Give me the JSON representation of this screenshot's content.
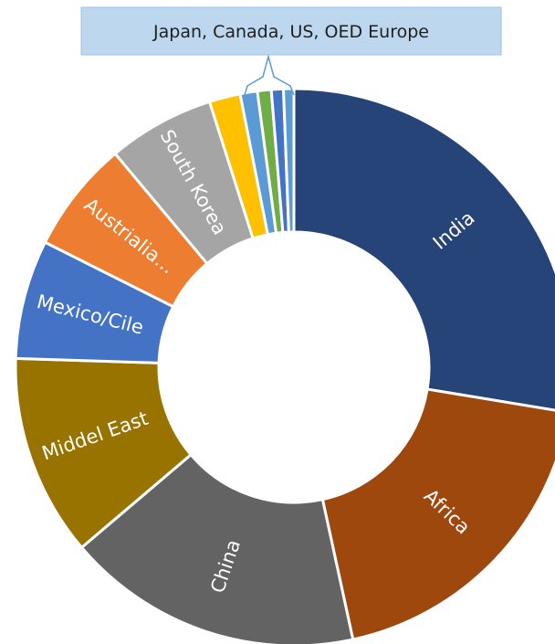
{
  "chart_data": {
    "type": "pie",
    "variant": "donut",
    "title": "",
    "slices": [
      {
        "label": "India",
        "value": 27.6,
        "color": "#264478"
      },
      {
        "label": "Africa",
        "value": 19.0,
        "color": "#9e480e"
      },
      {
        "label": "China",
        "value": 17.2,
        "color": "#636363"
      },
      {
        "label": "Middel East",
        "value": 11.7,
        "color": "#997300"
      },
      {
        "label": "Mexico/Cile",
        "value": 6.9,
        "color": "#4472c4"
      },
      {
        "label": "Austrialia...",
        "value": 6.5,
        "color": "#ed7d31"
      },
      {
        "label": "South Korea",
        "value": 6.2,
        "color": "#a5a5a5"
      },
      {
        "label": "",
        "value": 1.8,
        "color": "#ffc000"
      },
      {
        "label": "",
        "value": 1.0,
        "color": "#5b9bd5"
      },
      {
        "label": "",
        "value": 0.8,
        "color": "#70ad47"
      },
      {
        "label": "",
        "value": 0.7,
        "color": "#4472c4"
      },
      {
        "label": "",
        "value": 0.6,
        "color": "#5b9bd5"
      }
    ],
    "callout": {
      "text": "Japan, Canada, US, OED Europe"
    }
  }
}
